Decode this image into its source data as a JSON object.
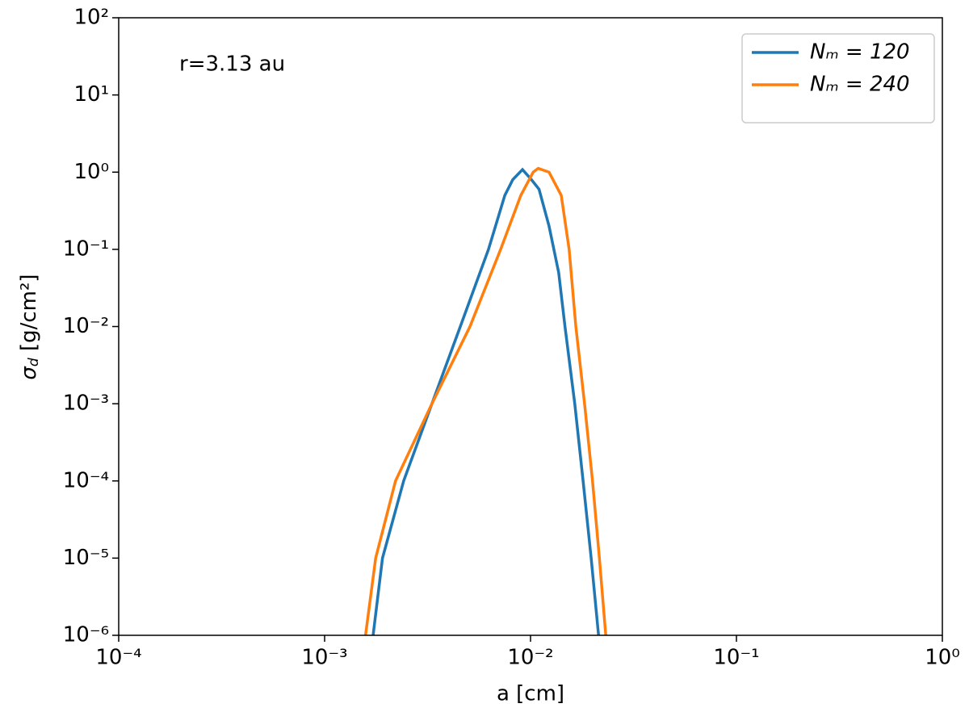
{
  "chart_data": {
    "type": "line",
    "annotation": "r=3.13 au",
    "xlabel": "a [cm]",
    "ylabel": {
      "symbol": "σ",
      "subscript": "d",
      "unit": " [g/cm²]"
    },
    "xscale": "log",
    "yscale": "log",
    "xlim": [
      0.0001,
      1
    ],
    "ylim": [
      1e-06,
      100
    ],
    "xticks": [
      {
        "value": 0.0001,
        "label": "10⁻⁴"
      },
      {
        "value": 0.001,
        "label": "10⁻³"
      },
      {
        "value": 0.01,
        "label": "10⁻²"
      },
      {
        "value": 0.1,
        "label": "10⁻¹"
      },
      {
        "value": 1,
        "label": "10⁰"
      }
    ],
    "yticks": [
      {
        "value": 1e-06,
        "label": "10⁻⁶"
      },
      {
        "value": 1e-05,
        "label": "10⁻⁵"
      },
      {
        "value": 0.0001,
        "label": "10⁻⁴"
      },
      {
        "value": 0.001,
        "label": "10⁻³"
      },
      {
        "value": 0.01,
        "label": "10⁻²"
      },
      {
        "value": 0.1,
        "label": "10⁻¹"
      },
      {
        "value": 1,
        "label": "10⁰"
      },
      {
        "value": 10,
        "label": "10¹"
      },
      {
        "value": 100,
        "label": "10²"
      }
    ],
    "legend": "upper right",
    "series": [
      {
        "name": "Nₘ = 120",
        "color": "#1f77b4",
        "x": [
          0.00172,
          0.00191,
          0.00242,
          0.00332,
          0.00456,
          0.00625,
          0.0075,
          0.0082,
          0.00914,
          0.0101,
          0.011,
          0.0123,
          0.0137,
          0.0147,
          0.0164,
          0.018,
          0.0197,
          0.0214
        ],
        "values": [
          1e-06,
          1e-05,
          0.0001,
          0.001,
          0.01,
          0.1,
          0.5,
          0.8,
          1.08,
          0.8,
          0.6,
          0.2,
          0.05,
          0.01,
          0.001,
          0.0001,
          1e-05,
          1e-06
        ]
      },
      {
        "name": "Nₘ = 240",
        "color": "#ff7f0e",
        "x": [
          0.00158,
          0.00177,
          0.00221,
          0.00332,
          0.00508,
          0.00716,
          0.00897,
          0.0103,
          0.0109,
          0.0123,
          0.0141,
          0.0154,
          0.0166,
          0.0183,
          0.02,
          0.0216,
          0.0232
        ],
        "values": [
          1e-06,
          1e-05,
          0.0001,
          0.001,
          0.01,
          0.1,
          0.5,
          1.0,
          1.12,
          1.0,
          0.5,
          0.1,
          0.01,
          0.001,
          0.0001,
          1e-05,
          1e-06
        ]
      }
    ]
  }
}
